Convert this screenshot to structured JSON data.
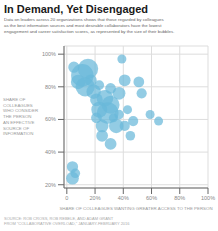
{
  "chart_data": {
    "type": "scatter",
    "title": "In Demand, Yet Disengaged",
    "subtitle": "Data on leaders across 20 organizations shows that those regarded by colleagues\nas the best information sources and most desirable collaborators have the lowest\nengagement and career satisfaction scores, as represented by the size of their bubbles.",
    "xlabel": "SHARE OF COLLEAGUES WANTING GREATER ACCESS TO THE PERSON",
    "ylabel": "SHARE OF\nCOLLEAGUES\nWHO CONSIDER\nTHE PERSON\nAN EFFECTIVE\nSOURCE OF\nINFORMATION",
    "annotations": [
      "SOURCE: ROB CROSS, ROB REBELE, AND ADAM GRANT",
      "FROM \"COLLABORATIVE OVERLOAD,\" JANUARY-FEBRUARY 2016"
    ],
    "x": [
      5,
      8,
      11,
      13,
      15,
      17,
      19,
      21,
      21,
      23,
      23,
      25,
      25,
      27,
      29,
      31,
      31,
      31,
      33,
      35,
      37,
      37,
      39,
      41,
      41,
      43,
      45,
      47,
      51,
      53,
      59,
      65,
      4,
      4,
      6
    ],
    "values": [
      92,
      83,
      87,
      80,
      91,
      84,
      77,
      72,
      61,
      66,
      81,
      56,
      50,
      73,
      64,
      69,
      79,
      45,
      61,
      56,
      76,
      63,
      97,
      84,
      56,
      66,
      50,
      59,
      83,
      76,
      63,
      59,
      31,
      24,
      27
    ],
    "sizes": [
      55,
      90,
      220,
      160,
      180,
      60,
      90,
      70,
      50,
      110,
      40,
      70,
      60,
      120,
      200,
      140,
      50,
      60,
      35,
      90,
      70,
      40,
      35,
      60,
      45,
      35,
      40,
      45,
      50,
      45,
      35,
      35,
      55,
      70,
      40
    ],
    "color": "#6ab8d9",
    "xlim": [
      -2,
      100
    ],
    "ylim": [
      18,
      105
    ],
    "xticks": [
      0,
      {
        "value": 20,
        "label": "20%"
      },
      {
        "value": 40,
        "label": "40%"
      },
      {
        "value": 60,
        "label": "60%"
      },
      {
        "value": 80,
        "label": "80%"
      },
      {
        "value": 100,
        "label": "100%"
      }
    ],
    "yticks": [
      {
        "value": 20,
        "label": "20%"
      },
      {
        "value": 40,
        "label": "40%"
      },
      {
        "value": 60,
        "label": "60%"
      },
      {
        "value": 80,
        "label": "80%"
      },
      {
        "value": 100,
        "label": "100%"
      }
    ],
    "grid": true
  }
}
